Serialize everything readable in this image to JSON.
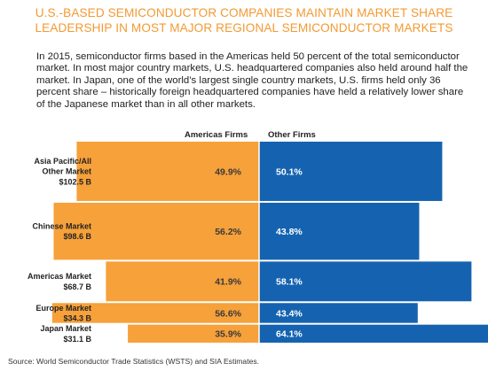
{
  "title_lines": [
    "U.S.-BASED SEMICONDUCTOR COMPANIES MAINTAIN MARKET SHARE",
    "LEADERSHIP IN MOST MAJOR REGIONAL SEMICONDUCTOR MARKETS"
  ],
  "intro": "In 2015, semiconductor firms based in the Americas held 50 percent of the total semiconductor market.  In most major country markets, U.S. headquartered companies also held around half the market.  In Japan, one of the world’s largest single country markets, U.S. firms held only 36 percent share – historically foreign headquartered companies have held a relatively lower share of the Japanese market than in all other markets.",
  "source": "Source: World Semiconductor Trade Statistics (WSTS) and SIA Estimates.",
  "colors": {
    "americas": "#f7a13a",
    "other": "#1563b0",
    "title": "#f39a33"
  },
  "chart_data": {
    "type": "bar",
    "orientation": "horizontal-diverging",
    "series": [
      {
        "name": "Americas Firms",
        "values": [
          49.9,
          56.2,
          41.9,
          56.6,
          35.9
        ]
      },
      {
        "name": "Other Firms",
        "values": [
          50.1,
          43.8,
          58.1,
          43.4,
          64.1
        ]
      }
    ],
    "markets": [
      {
        "label_lines": [
          "Asia Pacific/All",
          "Other Market",
          "$102.5 B"
        ],
        "size_billion_usd": 102.5,
        "americas_label": "49.9%",
        "other_label": "50.1%"
      },
      {
        "label_lines": [
          "Chinese Market",
          "$98.6 B"
        ],
        "size_billion_usd": 98.6,
        "americas_label": "56.2%",
        "other_label": "43.8%"
      },
      {
        "label_lines": [
          "Americas Market",
          "$68.7 B"
        ],
        "size_billion_usd": 68.7,
        "americas_label": "41.9%",
        "other_label": "58.1%"
      },
      {
        "label_lines": [
          "Europe Market",
          "$34.3 B"
        ],
        "size_billion_usd": 34.3,
        "americas_label": "56.6%",
        "other_label": "43.4%"
      },
      {
        "label_lines": [
          "Japan Market",
          "$31.1 B"
        ],
        "size_billion_usd": 31.1,
        "americas_label": "35.9%",
        "other_label": "64.1%"
      }
    ]
  }
}
